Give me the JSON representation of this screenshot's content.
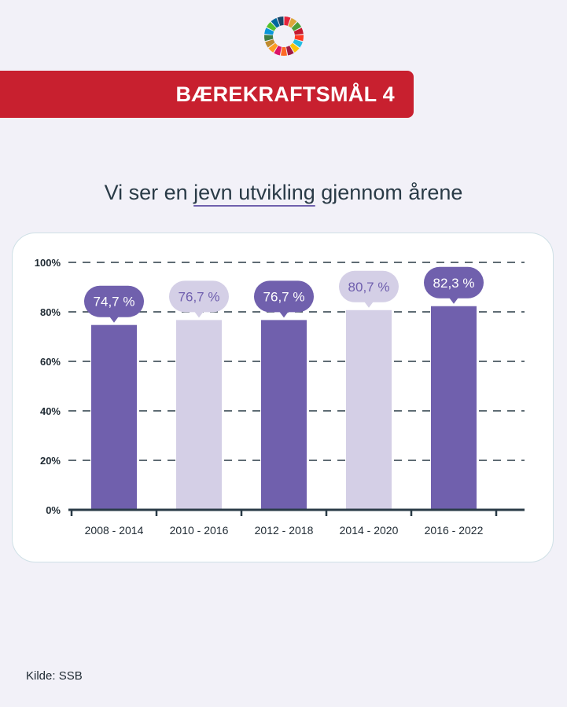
{
  "header": {
    "banner_title": "BÆREKRAFTSMÅL 4",
    "logo_icon": "sdg-wheel-icon",
    "sdg_colors": [
      "#e5243b",
      "#dda63a",
      "#4c9f38",
      "#c5192d",
      "#ff3a21",
      "#26bde2",
      "#fcc30b",
      "#a21942",
      "#fd6925",
      "#dd1367",
      "#fd9d24",
      "#bf8b2e",
      "#3f7e44",
      "#0a97d9",
      "#56c02b",
      "#00689d",
      "#19486a"
    ]
  },
  "headline": {
    "before": "Vi ser en ",
    "emphasis": "jevn utvikling",
    "after": " gjennom årene"
  },
  "source": "Kilde: SSB",
  "colors": {
    "dark_bar": "#7060ad",
    "light_bar": "#d4cfe6",
    "dark_label_text": "#ffffff",
    "light_label_text": "#6f5fae",
    "axis": "#2a3b47"
  },
  "chart_data": {
    "type": "bar",
    "categories": [
      "2008 - 2014",
      "2010 - 2016",
      "2012 - 2018",
      "2014 - 2020",
      "2016 - 2022"
    ],
    "values": [
      74.7,
      76.7,
      76.7,
      80.7,
      82.3
    ],
    "value_labels": [
      "74,7 %",
      "76,7 %",
      "76,7 %",
      "80,7 %",
      "82,3 %"
    ],
    "bar_shades": [
      "dark",
      "light",
      "dark",
      "light",
      "dark"
    ],
    "ylim": [
      0,
      100
    ],
    "y_ticks": [
      0,
      20,
      40,
      60,
      80,
      100
    ],
    "y_tick_labels": [
      "0%",
      "20%",
      "40%",
      "60%",
      "80%",
      "100%"
    ],
    "grid": true,
    "grid_style": "dashed",
    "legend": "none"
  }
}
